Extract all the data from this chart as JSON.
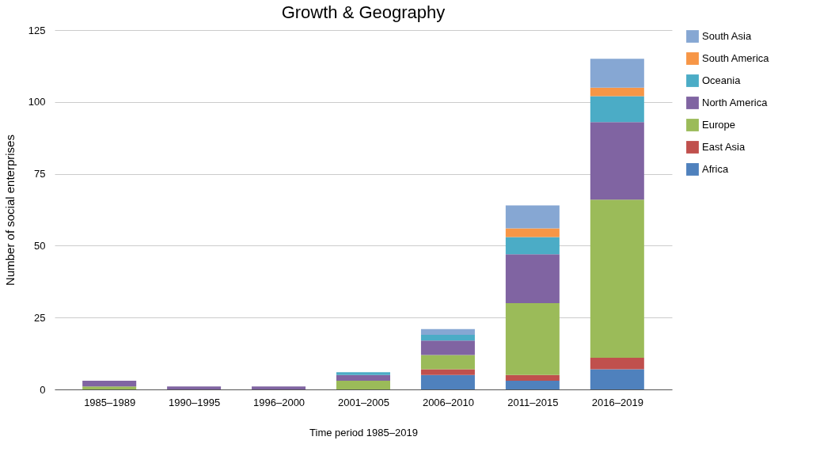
{
  "chart_data": {
    "type": "bar",
    "title": "Growth & Geography",
    "xlabel": "Time period 1985–2019",
    "ylabel": "Number of social enterprises",
    "categories": [
      "1985–1989",
      "1990–1995",
      "1996–2000",
      "2001–2005",
      "2006–2010",
      "2011–2015",
      "2016–2019"
    ],
    "stacked": true,
    "ylim": [
      0,
      125
    ],
    "yticks": [
      0,
      25,
      50,
      75,
      100,
      125
    ],
    "grid": "y",
    "legend": "right",
    "series": [
      {
        "name": "Africa",
        "color": "#4f81bd",
        "values": [
          0,
          0,
          0,
          0,
          5,
          3,
          7
        ]
      },
      {
        "name": "East Asia",
        "color": "#c0504d",
        "values": [
          0,
          0,
          0,
          0,
          2,
          2,
          4
        ]
      },
      {
        "name": "Europe",
        "color": "#9bbb59",
        "values": [
          1,
          0,
          0,
          3,
          5,
          25,
          55
        ]
      },
      {
        "name": "North America",
        "color": "#8064a2",
        "values": [
          2,
          1,
          1,
          2,
          5,
          17,
          27
        ]
      },
      {
        "name": "Oceania",
        "color": "#4bacc6",
        "values": [
          0,
          0,
          0,
          1,
          2,
          6,
          9
        ]
      },
      {
        "name": "South America",
        "color": "#f79646",
        "values": [
          0,
          0,
          0,
          0,
          0,
          3,
          3
        ]
      },
      {
        "name": "South Asia",
        "color": "#86a7d3",
        "values": [
          0,
          0,
          0,
          0,
          2,
          8,
          10
        ]
      }
    ]
  }
}
